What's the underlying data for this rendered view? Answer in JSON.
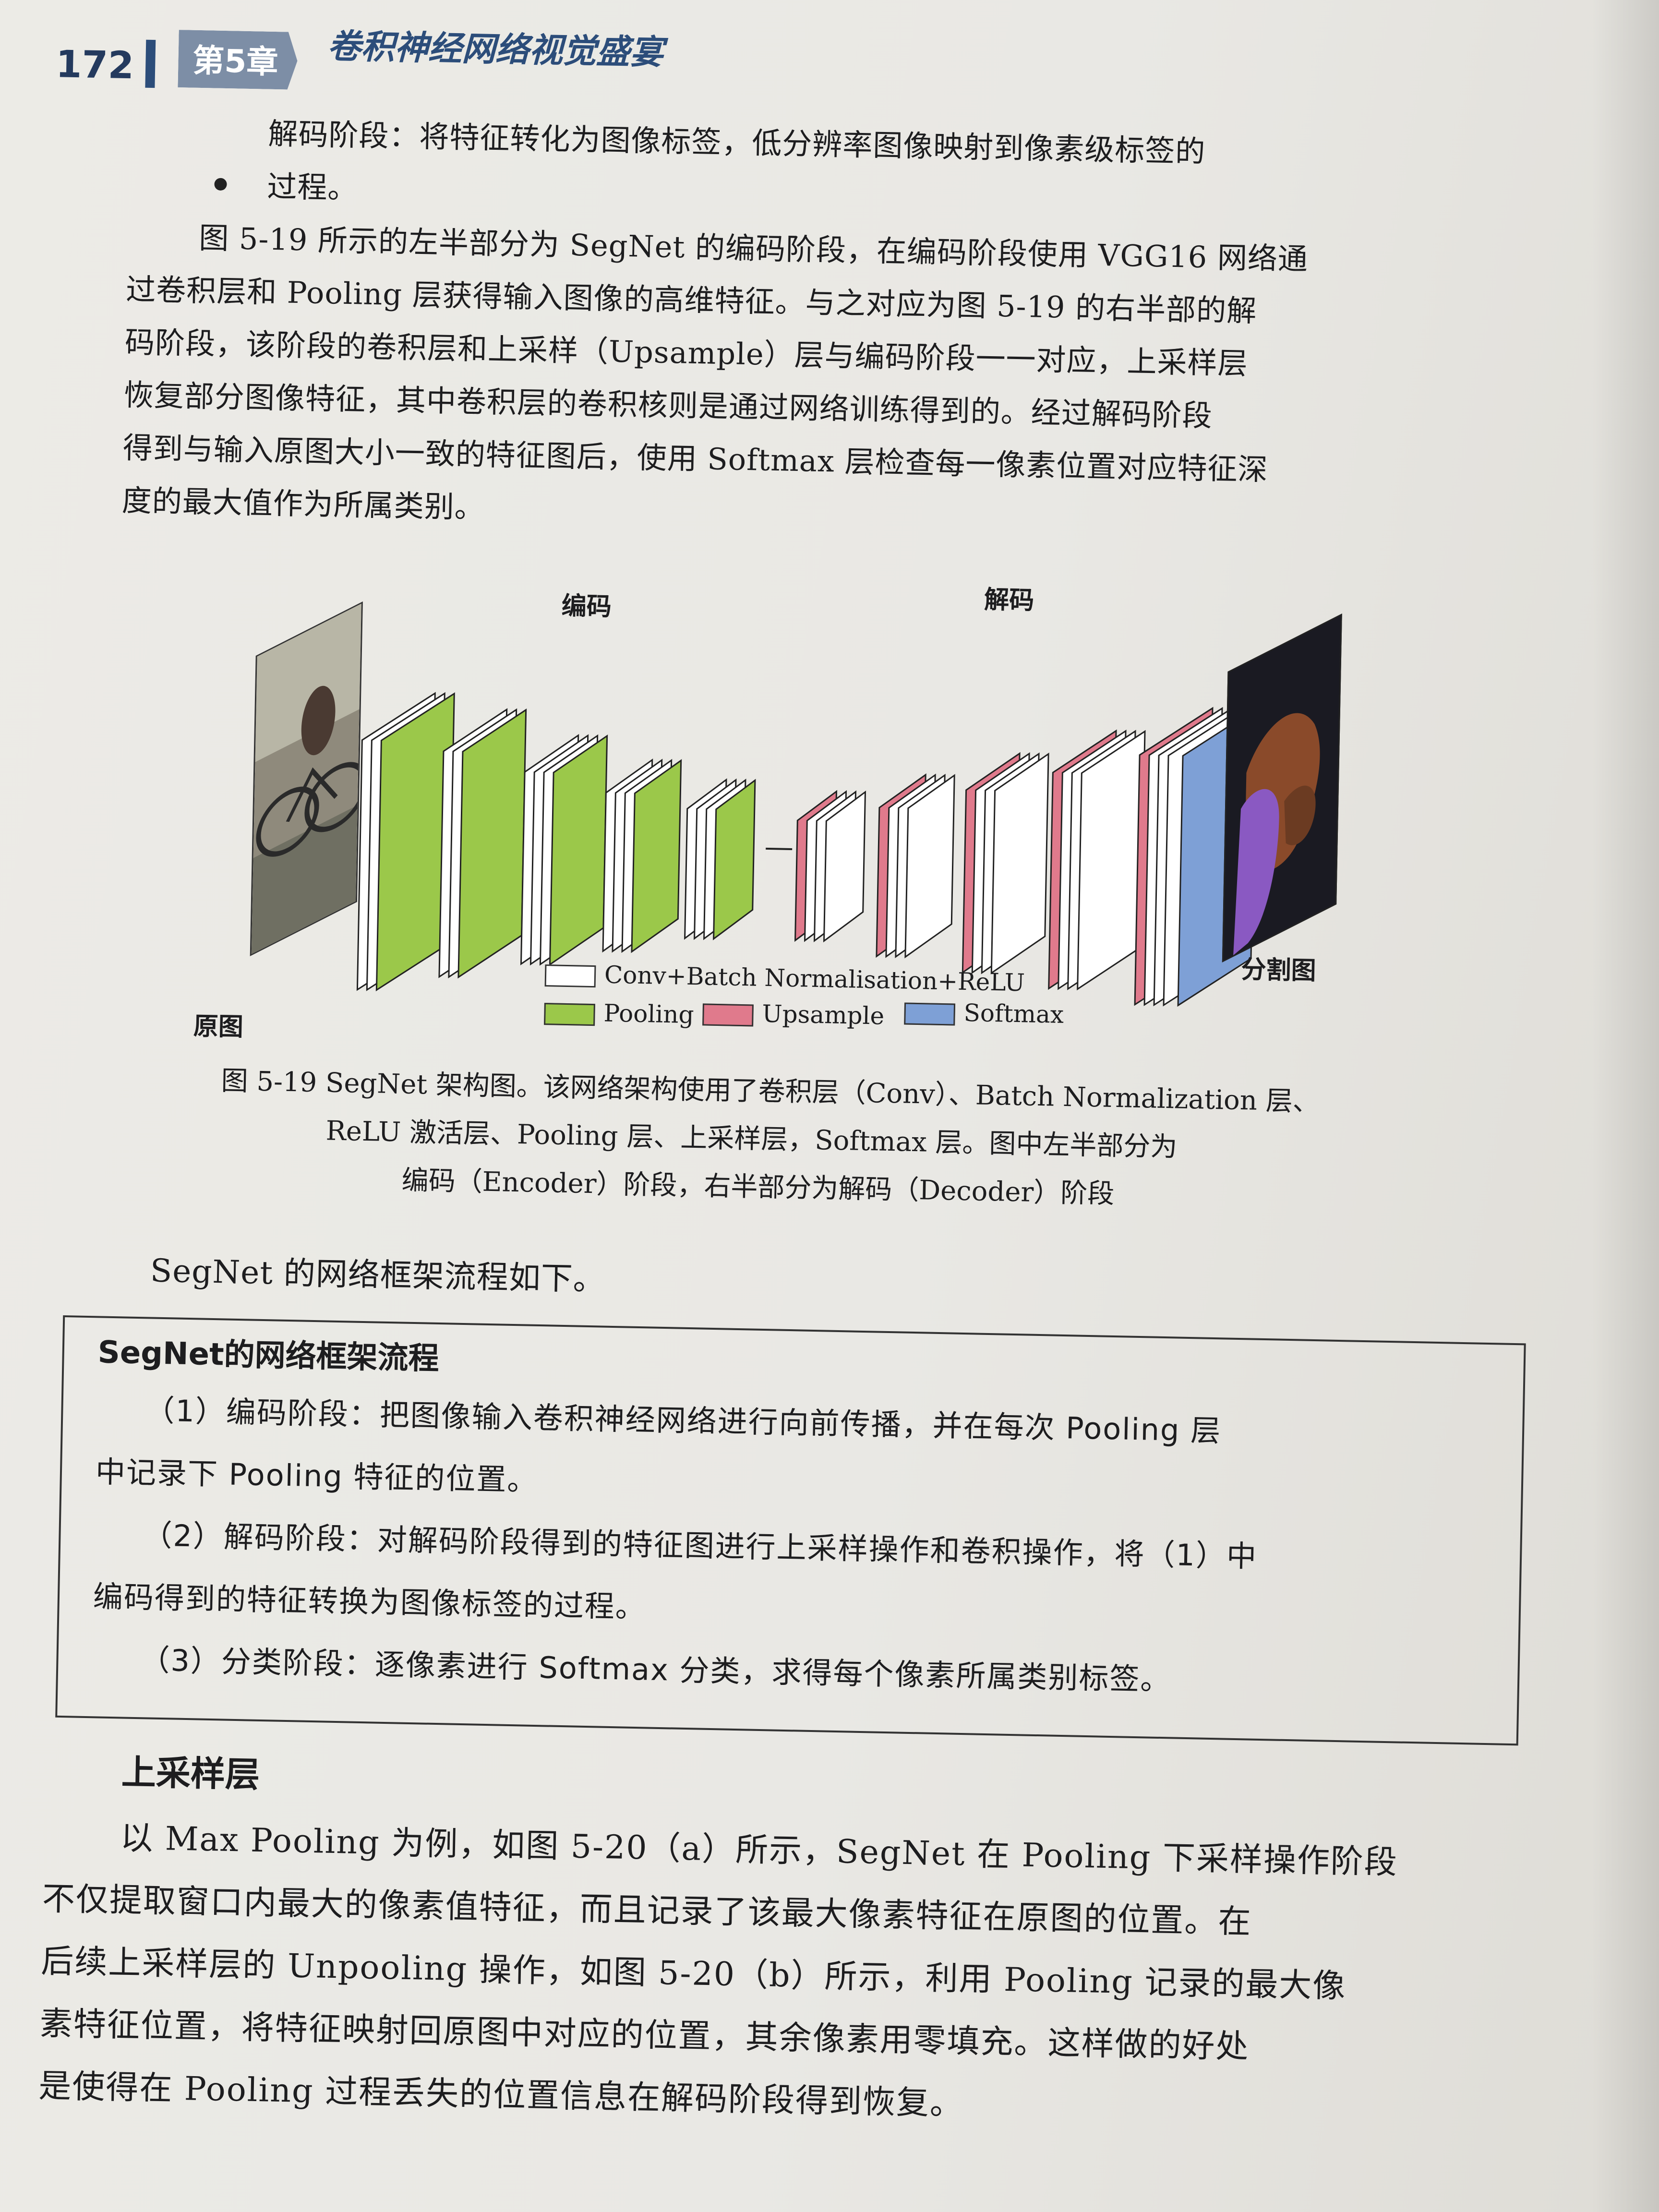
{
  "header": {
    "page_number": "172",
    "chapter_tag": "第5章",
    "chapter_title": "卷积神经网络视觉盛宴"
  },
  "intro_lines": [
    "解码阶段：将特征转化为图像标签，低分辨率图像映射到像素级标签的",
    "过程。",
    "图 5-19 所示的左半部分为 SegNet 的编码阶段，在编码阶段使用 VGG16 网络通",
    "过卷积层和 Pooling 层获得输入图像的高维特征。与之对应为图 5-19 的右半部的解",
    "码阶段，该阶段的卷积层和上采样（Upsample）层与编码阶段一一对应，上采样层",
    "恢复部分图像特征，其中卷积层的卷积核则是通过网络训练得到的。经过解码阶段",
    "得到与输入原图大小一致的特征图后，使用 Softmax 层检查每一像素位置对应特征深",
    "度的最大值作为所属类别。"
  ],
  "figure": {
    "encoder_label": "编码",
    "decoder_label": "解码",
    "input_label": "原图",
    "output_label": "分割图",
    "legend": {
      "conv": "Conv+Batch Normalisation+ReLU",
      "pooling": "Pooling",
      "upsample": "Upsample",
      "softmax": "Softmax"
    },
    "colors": {
      "conv": "#ffffff",
      "pooling": "#9bc84a",
      "upsample": "#e07a8c",
      "softmax": "#7ea0d6"
    },
    "caption_lines": [
      "图 5-19   SegNet 架构图。该网络架构使用了卷积层（Conv）、Batch Normalization 层、",
      "ReLU 激活层、Pooling 层、上采样层，Softmax 层。图中左半部分为",
      "编码（Encoder）阶段，右半部分为解码（Decoder）阶段"
    ]
  },
  "flow_intro": "SegNet 的网络框架流程如下。",
  "flow_box": {
    "title": "SegNet的网络框架流程",
    "lines": [
      "（1）编码阶段：把图像输入卷积神经网络进行向前传播，并在每次 Pooling 层",
      "中记录下 Pooling 特征的位置。",
      "（2）解码阶段：对解码阶段得到的特征图进行上采样操作和卷积操作，将（1）中",
      "编码得到的特征转换为图像标签的过程。",
      "（3）分类阶段：逐像素进行 Softmax 分类，求得每个像素所属类别标签。"
    ]
  },
  "section": {
    "heading": "上采样层",
    "lines": [
      "以 Max Pooling 为例，如图 5-20（a）所示，SegNet 在 Pooling 下采样操作阶段",
      "不仅提取窗口内最大的像素值特征，而且记录了该最大像素特征在原图的位置。在",
      "后续上采样层的 Unpooling 操作，如图 5-20（b）所示，利用 Pooling 记录的最大像",
      "素特征位置，将特征映射回原图中对应的位置，其余像素用零填充。这样做的好处",
      "是使得在 Pooling 过程丢失的位置信息在解码阶段得到恢复。"
    ]
  }
}
